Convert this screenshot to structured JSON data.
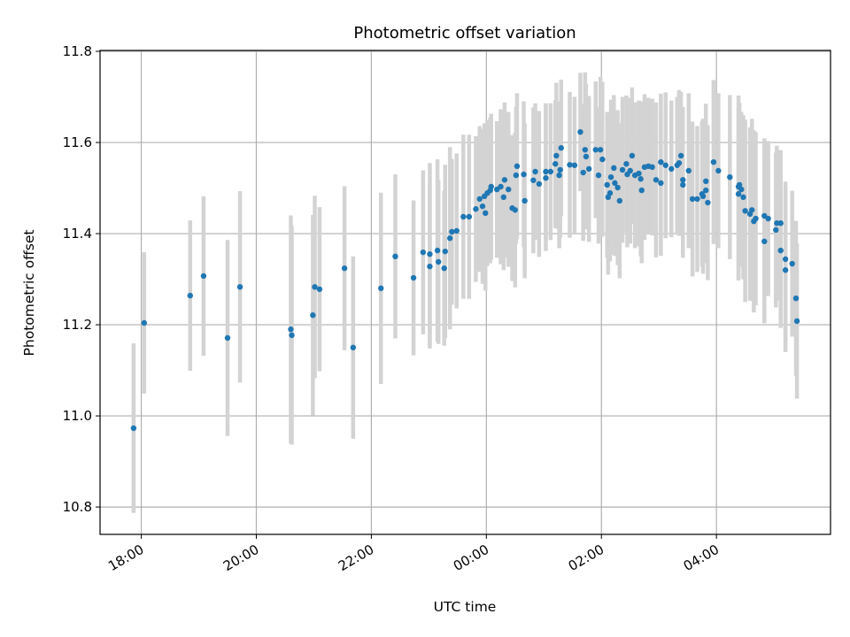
{
  "chart_data": {
    "type": "scatter",
    "title": "Photometric offset variation",
    "xlabel": "UTC time",
    "ylabel": "Photometric offset",
    "xlim": [
      "17:17",
      "05:59"
    ],
    "ylim": [
      10.74,
      11.802
    ],
    "grid": true,
    "x_ticks": [
      "18:00",
      "20:00",
      "22:00",
      "00:00",
      "02:00",
      "04:00"
    ],
    "y_ticks": [
      "10.8",
      "11.0",
      "11.2",
      "11.4",
      "11.6",
      "11.8"
    ],
    "series": [
      {
        "name": "offset",
        "marker_color": "#1f77b4",
        "errorbar_color": "#d3d3d3",
        "points": [
          [
            "17:52",
            10.973,
            0.186
          ],
          [
            "18:03",
            11.204,
            0.155
          ],
          [
            "18:51",
            11.264,
            0.165
          ],
          [
            "19:05",
            11.307,
            0.175
          ],
          [
            "19:30",
            11.171,
            0.215
          ],
          [
            "19:43",
            11.283,
            0.21
          ],
          [
            "20:36",
            11.19,
            0.25
          ],
          [
            "20:37",
            11.177,
            0.24
          ],
          [
            "20:59",
            11.221,
            0.22
          ],
          [
            "21:01",
            11.283,
            0.2
          ],
          [
            "21:06",
            11.278,
            0.18
          ],
          [
            "21:32",
            11.324,
            0.18
          ],
          [
            "21:41",
            11.15,
            0.2
          ],
          [
            "22:10",
            11.28,
            0.21
          ],
          [
            "22:25",
            11.35,
            0.18
          ],
          [
            "22:44",
            11.303,
            0.17
          ],
          [
            "22:54",
            11.359,
            0.18
          ],
          [
            "23:01",
            11.355,
            0.2
          ],
          [
            "23:01",
            11.328,
            0.18
          ],
          [
            "23:09",
            11.363,
            0.2
          ],
          [
            "23:10",
            11.338,
            0.18
          ],
          [
            "23:17",
            11.361,
            0.19
          ],
          [
            "23:16",
            11.324,
            0.17
          ],
          [
            "23:22",
            11.39,
            0.2
          ],
          [
            "23:24",
            11.404,
            0.16
          ],
          [
            "23:29",
            11.406,
            0.17
          ],
          [
            "23:36",
            11.437,
            0.18
          ],
          [
            "23:42",
            11.437,
            0.18
          ],
          [
            "23:49",
            11.454,
            0.16
          ],
          [
            "23:53",
            11.476,
            0.16
          ],
          [
            "23:56",
            11.46,
            0.17
          ],
          [
            "23:58",
            11.482,
            0.16
          ],
          [
            "23:59",
            11.445,
            0.17
          ],
          [
            "00:01",
            11.489,
            0.16
          ],
          [
            "00:04",
            11.495,
            0.16
          ],
          [
            "00:05",
            11.503,
            0.16
          ],
          [
            "00:11",
            11.497,
            0.15
          ],
          [
            "00:15",
            11.503,
            0.17
          ],
          [
            "00:18",
            11.48,
            0.16
          ],
          [
            "00:19",
            11.518,
            0.17
          ],
          [
            "00:23",
            11.497,
            0.17
          ],
          [
            "00:27",
            11.456,
            0.16
          ],
          [
            "00:30",
            11.452,
            0.17
          ],
          [
            "00:31",
            11.528,
            0.15
          ],
          [
            "00:32",
            11.548,
            0.16
          ],
          [
            "00:39",
            11.53,
            0.16
          ],
          [
            "00:40",
            11.472,
            0.17
          ],
          [
            "00:49",
            11.517,
            0.16
          ],
          [
            "00:51",
            11.536,
            0.15
          ],
          [
            "00:55",
            11.509,
            0.16
          ],
          [
            "01:02",
            11.536,
            0.15
          ],
          [
            "01:02",
            11.522,
            0.16
          ],
          [
            "01:07",
            11.536,
            0.15
          ],
          [
            "01:12",
            11.553,
            0.14
          ],
          [
            "01:13",
            11.571,
            0.16
          ],
          [
            "01:16",
            11.528,
            0.16
          ],
          [
            "01:17",
            11.54,
            0.15
          ],
          [
            "01:18",
            11.588,
            0.15
          ],
          [
            "01:27",
            11.551,
            0.16
          ],
          [
            "01:32",
            11.55,
            0.15
          ],
          [
            "01:38",
            11.623,
            0.13
          ],
          [
            "01:41",
            11.534,
            0.15
          ],
          [
            "01:43",
            11.584,
            0.17
          ],
          [
            "01:44",
            11.569,
            0.16
          ],
          [
            "01:47",
            11.542,
            0.16
          ],
          [
            "01:54",
            11.584,
            0.15
          ],
          [
            "01:59",
            11.584,
            0.16
          ],
          [
            "02:01",
            11.563,
            0.17
          ],
          [
            "01:57",
            11.528,
            0.15
          ],
          [
            "02:06",
            11.507,
            0.16
          ],
          [
            "02:07",
            11.48,
            0.17
          ],
          [
            "02:09",
            11.489,
            0.15
          ],
          [
            "02:10",
            11.524,
            0.17
          ],
          [
            "02:13",
            11.544,
            0.16
          ],
          [
            "02:14",
            11.511,
            0.16
          ],
          [
            "02:17",
            11.501,
            0.17
          ],
          [
            "02:19",
            11.472,
            0.17
          ],
          [
            "02:22",
            11.54,
            0.16
          ],
          [
            "02:26",
            11.553,
            0.15
          ],
          [
            "02:27",
            11.53,
            0.16
          ],
          [
            "02:30",
            11.538,
            0.16
          ],
          [
            "02:32",
            11.571,
            0.15
          ],
          [
            "02:35",
            11.528,
            0.16
          ],
          [
            "02:39",
            11.532,
            0.16
          ],
          [
            "02:41",
            11.52,
            0.17
          ],
          [
            "02:42",
            11.495,
            0.16
          ],
          [
            "02:45",
            11.546,
            0.16
          ],
          [
            "02:49",
            11.548,
            0.15
          ],
          [
            "02:53",
            11.546,
            0.15
          ],
          [
            "02:57",
            11.518,
            0.17
          ],
          [
            "03:02",
            11.511,
            0.16
          ],
          [
            "03:02",
            11.557,
            0.15
          ],
          [
            "03:07",
            11.55,
            0.16
          ],
          [
            "03:13",
            11.542,
            0.15
          ],
          [
            "03:19",
            11.55,
            0.15
          ],
          [
            "03:21",
            11.555,
            0.16
          ],
          [
            "03:23",
            11.571,
            0.14
          ],
          [
            "03:25",
            11.518,
            0.16
          ],
          [
            "03:25",
            11.507,
            0.16
          ],
          [
            "03:31",
            11.538,
            0.17
          ],
          [
            "03:35",
            11.476,
            0.17
          ],
          [
            "03:40",
            11.476,
            0.16
          ],
          [
            "03:45",
            11.487,
            0.16
          ],
          [
            "03:46",
            11.482,
            0.17
          ],
          [
            "03:49",
            11.495,
            0.16
          ],
          [
            "03:49",
            11.515,
            0.17
          ],
          [
            "03:51",
            11.468,
            0.17
          ],
          [
            "03:57",
            11.557,
            0.18
          ],
          [
            "04:02",
            11.538,
            0.17
          ],
          [
            "04:14",
            11.524,
            0.18
          ],
          [
            "04:23",
            11.503,
            0.2
          ],
          [
            "04:24",
            11.507,
            0.18
          ],
          [
            "04:26",
            11.497,
            0.17
          ],
          [
            "04:23",
            11.487,
            0.19
          ],
          [
            "04:28",
            11.48,
            0.18
          ],
          [
            "04:30",
            11.45,
            0.2
          ],
          [
            "04:35",
            11.443,
            0.19
          ],
          [
            "04:37",
            11.452,
            0.2
          ],
          [
            "04:39",
            11.427,
            0.2
          ],
          [
            "04:41",
            11.433,
            0.19
          ],
          [
            "04:50",
            11.439,
            0.17
          ],
          [
            "04:54",
            11.433,
            0.17
          ],
          [
            "04:50",
            11.383,
            0.18
          ],
          [
            "05:02",
            11.408,
            0.17
          ],
          [
            "05:03",
            11.423,
            0.17
          ],
          [
            "05:07",
            11.423,
            0.16
          ],
          [
            "05:07",
            11.363,
            0.17
          ],
          [
            "05:12",
            11.344,
            0.17
          ],
          [
            "05:12",
            11.32,
            0.18
          ],
          [
            "05:19",
            11.334,
            0.16
          ],
          [
            "05:23",
            11.258,
            0.17
          ],
          [
            "05:24",
            11.208,
            0.17
          ]
        ]
      }
    ]
  }
}
